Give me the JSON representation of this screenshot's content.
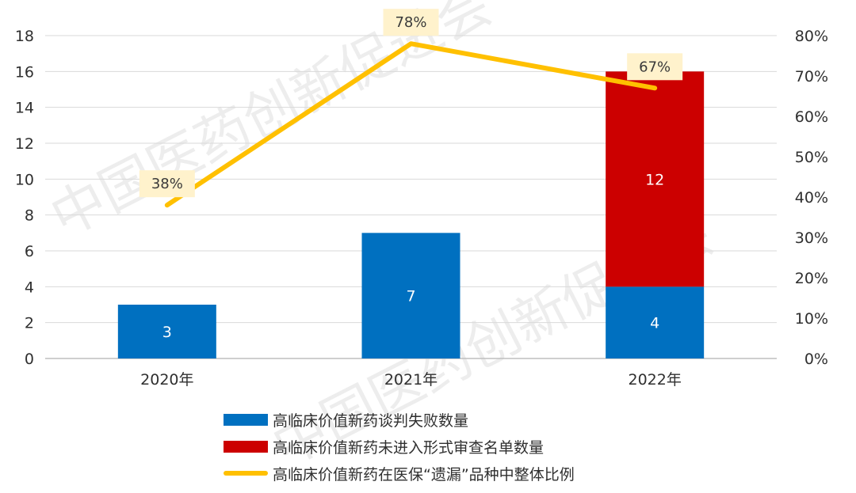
{
  "chart_data": {
    "type": "bar",
    "categories": [
      "2020年",
      "2021年",
      "2022年"
    ],
    "series": [
      {
        "name": "高临床价值新药谈判失败数量",
        "kind": "bar",
        "stack": "main",
        "axis": "left",
        "values": [
          3,
          7,
          4
        ],
        "labels": [
          "3",
          "7",
          "4"
        ],
        "color": "#0070c0"
      },
      {
        "name": "高临床价值新药未进入形式审查名单数量",
        "kind": "bar",
        "stack": "main",
        "axis": "left",
        "values": [
          0,
          0,
          12
        ],
        "labels": [
          "",
          "",
          "12"
        ],
        "color": "#cc0000"
      },
      {
        "name": "高临床价值新药在医保“遗漏”品种中整体比例",
        "kind": "line",
        "axis": "right",
        "values": [
          38,
          78,
          67
        ],
        "labels": [
          "38%",
          "78%",
          "67%"
        ],
        "color": "#ffc000"
      }
    ],
    "y_left": {
      "min": 0,
      "max": 18,
      "ticks": [
        "0",
        "2",
        "4",
        "6",
        "8",
        "10",
        "12",
        "14",
        "16",
        "18"
      ]
    },
    "y_right": {
      "min": 0,
      "max": 80,
      "ticks": [
        "0%",
        "10%",
        "20%",
        "30%",
        "40%",
        "50%",
        "60%",
        "70%",
        "80%"
      ]
    },
    "grid": true,
    "legend_position": "bottom",
    "watermark": "中国医药创新促进会"
  }
}
